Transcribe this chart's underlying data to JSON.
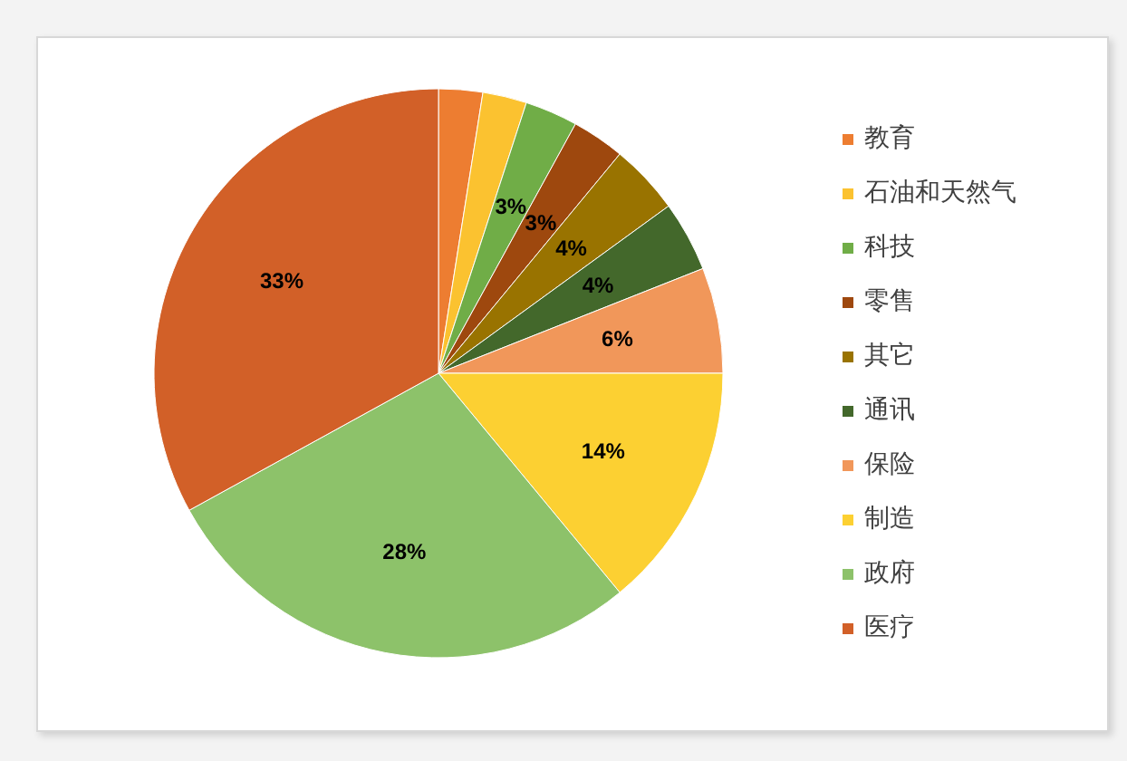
{
  "chart_data": {
    "type": "pie",
    "categories": [
      "教育",
      "石油和天然气",
      "科技",
      "零售",
      "其它",
      "通讯",
      "保险",
      "制造",
      "政府",
      "医疗"
    ],
    "values": [
      2.5,
      2.5,
      3,
      3,
      4,
      4,
      6,
      14,
      28,
      33
    ],
    "value_labels": [
      null,
      null,
      "3%",
      "3%",
      "4%",
      "4%",
      "6%",
      "14%",
      "28%",
      "33%"
    ],
    "colors": [
      "#ed7d31",
      "#fbc230",
      "#70ad47",
      "#9e480e",
      "#997300",
      "#43682b",
      "#f1975a",
      "#fcd032",
      "#8dc26a",
      "#d26028"
    ],
    "legend": "right"
  }
}
